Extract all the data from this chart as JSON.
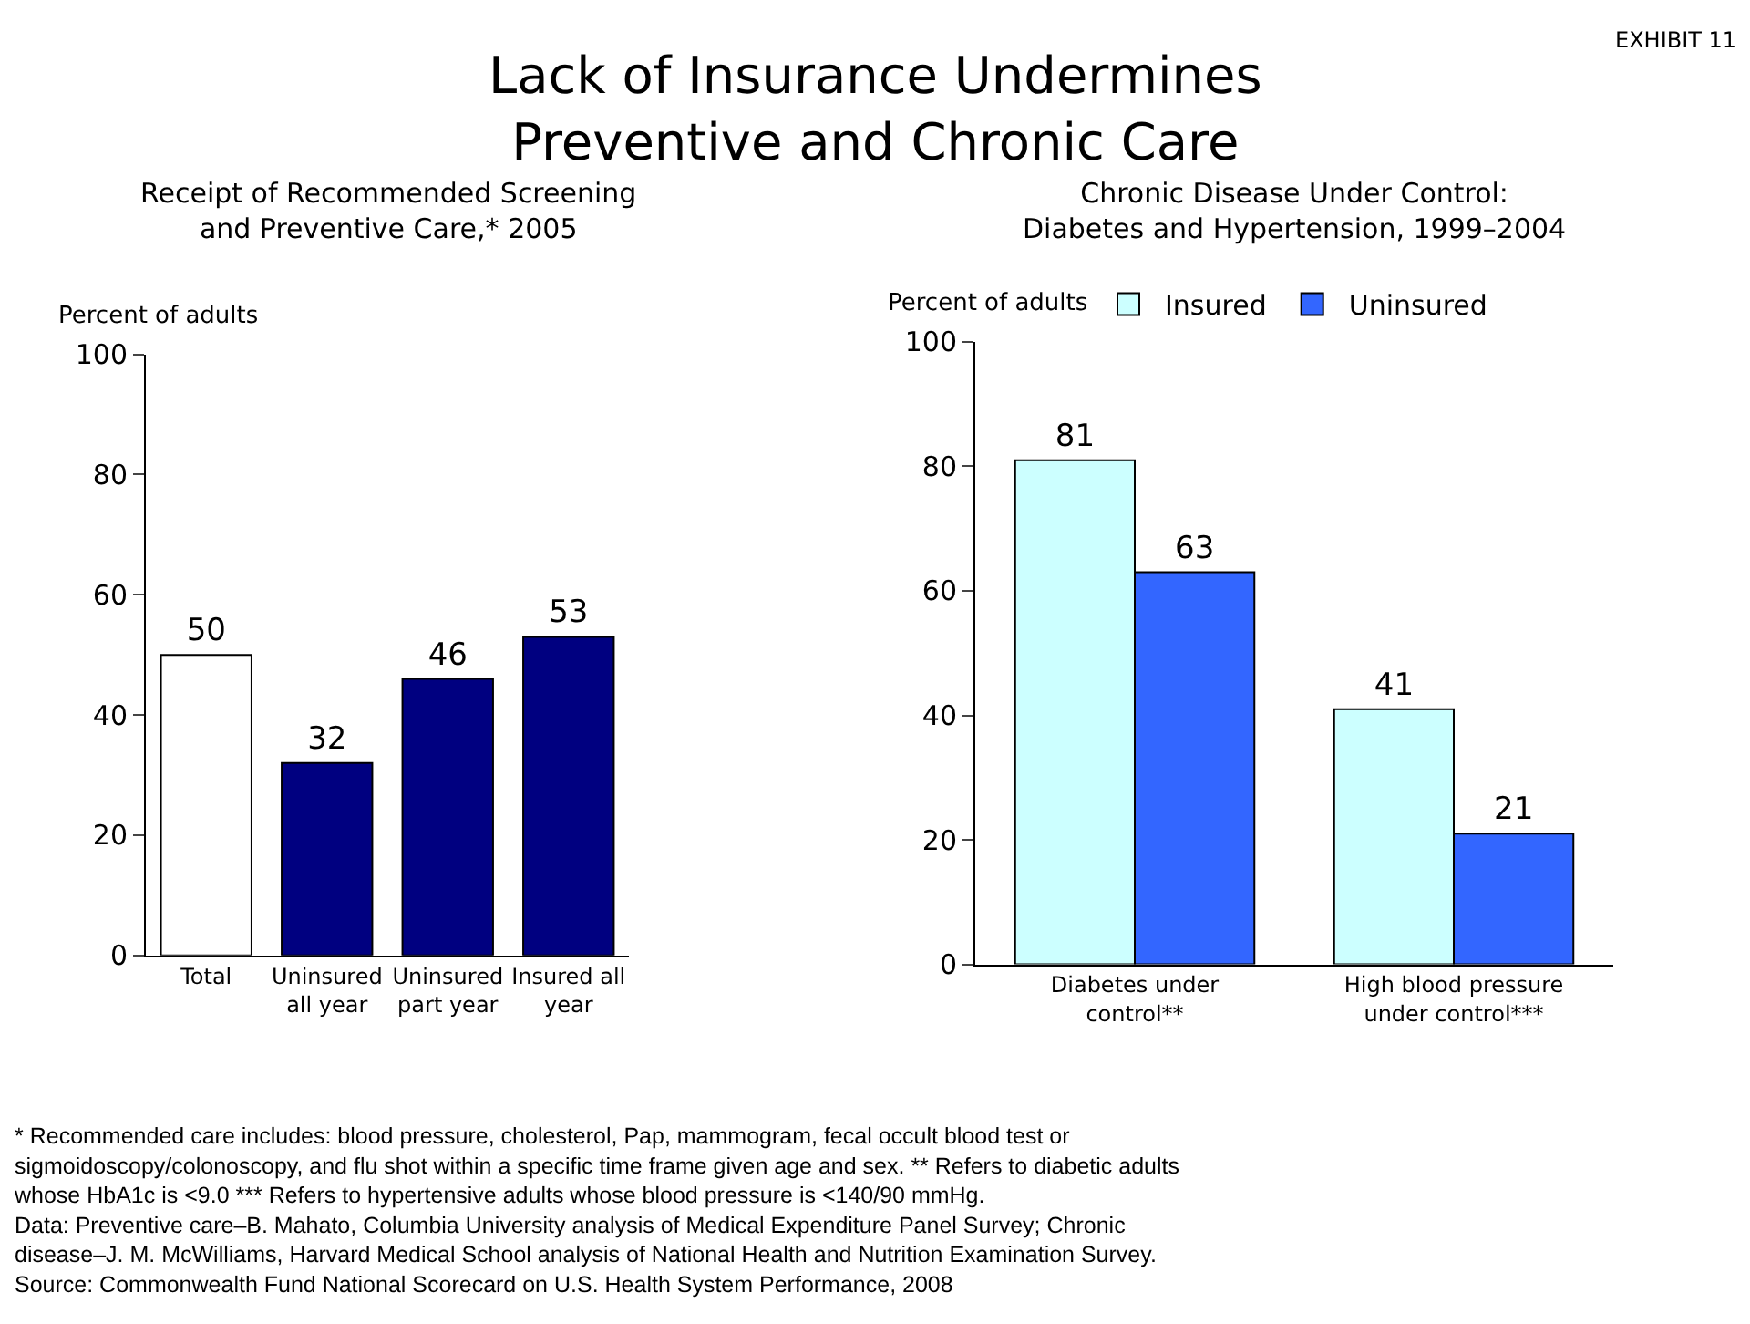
{
  "chart_data": [
    {
      "type": "bar",
      "title": "Receipt of Recommended Screening\nand Preventive Care,* 2005",
      "ylabel": "Percent of adults",
      "categories": [
        "Total",
        "Uninsured\nall year",
        "Uninsured\npart year",
        "Insured all\nyear"
      ],
      "values": [
        50,
        32,
        46,
        53
      ],
      "colors": [
        "#ffffff",
        "#000080",
        "#000080",
        "#000080"
      ],
      "ylim": [
        0,
        100
      ],
      "yticks": [
        0,
        20,
        40,
        60,
        80,
        100
      ],
      "data_labels": true,
      "annotations": [
        "EXHIBIT 11",
        "Lack of Insurance Undermines\nPreventive and Chronic Care",
        "* Recommended care includes: blood pressure, cholesterol, Pap, mammogram, fecal occult blood test or\nsigmoidoscopy/colonoscopy, and flu shot within a specific time frame given age and sex. ** Refers to diabetic adults\nwhose HbA1c is <9.0 *** Refers to hypertensive adults whose blood pressure is <140/90 mmHg.\nData: Preventive care–B. Mahato, Columbia University analysis of Medical Expenditure Panel Survey; Chronic\ndisease–J. M. McWilliams, Harvard Medical School analysis of National Health and Nutrition Examination Survey.\nSource: Commonwealth Fund National Scorecard on U.S. Health System Performance, 2008"
      ]
    },
    {
      "type": "bar",
      "title": "Chronic Disease Under Control:\nDiabetes and Hypertension, 1999–2004",
      "ylabel": "Percent of adults",
      "categories": [
        "Diabetes under\ncontrol**",
        "High blood pressure\nunder control***"
      ],
      "series": [
        {
          "name": "Insured",
          "color": "#ccffff",
          "values": [
            81,
            41
          ]
        },
        {
          "name": "Uninsured",
          "color": "#3366ff",
          "values": [
            63,
            21
          ]
        }
      ],
      "ylim": [
        0,
        100
      ],
      "yticks": [
        0,
        20,
        40,
        60,
        80,
        100
      ],
      "data_labels": true,
      "legend": "top"
    }
  ]
}
